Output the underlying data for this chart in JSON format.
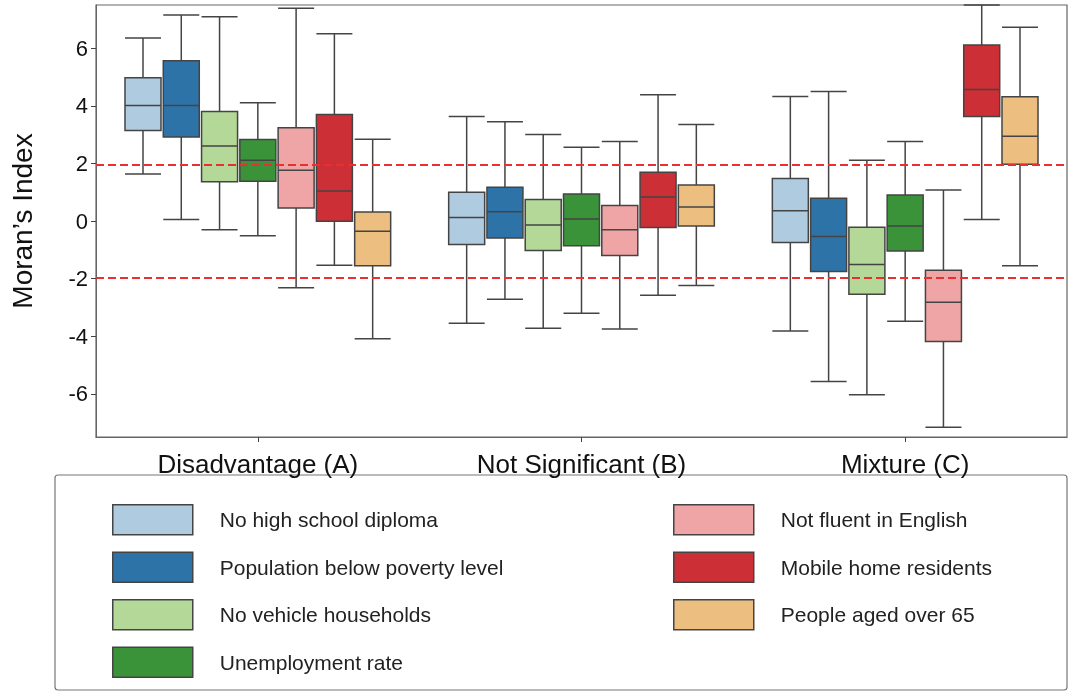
{
  "chart_data": {
    "type": "box",
    "ylabel": "Moran’s Index",
    "categories": [
      "Disadvantage (A)",
      "Not Significant (B)",
      "Mixture (C)"
    ],
    "ylim": [
      -7.5,
      7.5
    ],
    "yticks": [
      -6,
      -4,
      -2,
      0,
      2,
      4,
      6
    ],
    "grid": false,
    "legend": "bottom",
    "ref_lines": [
      {
        "axis": "y",
        "value": 1.96,
        "color": "#e8302f",
        "line_style": "dashed"
      },
      {
        "axis": "y",
        "value": -1.96,
        "color": "#e8302f",
        "line_style": "dashed"
      }
    ],
    "series": [
      {
        "name": "No high school diploma",
        "color": "#aecbe0",
        "boxes": [
          {
            "low": 1.63,
            "q1": 3.14,
            "median": 4.01,
            "q3": 4.97,
            "high": 6.35
          },
          {
            "low": -3.55,
            "q1": -0.82,
            "median": 0.12,
            "q3": 1.0,
            "high": 3.63
          },
          {
            "low": -3.82,
            "q1": -0.75,
            "median": 0.36,
            "q3": 1.48,
            "high": 4.32
          }
        ]
      },
      {
        "name": "Population below poverty level",
        "color": "#2e73a8",
        "boxes": [
          {
            "low": 0.05,
            "q1": 2.92,
            "median": 4.01,
            "q3": 5.56,
            "high": 7.15
          },
          {
            "low": -2.72,
            "q1": -0.59,
            "median": 0.32,
            "q3": 1.17,
            "high": 3.45
          },
          {
            "low": -5.57,
            "q1": -1.75,
            "median": -0.54,
            "q3": 0.79,
            "high": 4.5
          }
        ]
      },
      {
        "name": "No vehicle households",
        "color": "#b4d898",
        "boxes": [
          {
            "low": -0.3,
            "q1": 1.36,
            "median": 2.6,
            "q3": 3.8,
            "high": 7.09
          },
          {
            "low": -3.72,
            "q1": -1.02,
            "median": -0.14,
            "q3": 0.75,
            "high": 3.0
          },
          {
            "low": -6.03,
            "q1": -2.54,
            "median": -1.51,
            "q3": -0.22,
            "high": 2.11
          }
        ]
      },
      {
        "name": "Unemployment rate",
        "color": "#3a9239",
        "boxes": [
          {
            "low": -0.51,
            "q1": 1.38,
            "median": 2.11,
            "q3": 2.83,
            "high": 4.11
          },
          {
            "low": -3.2,
            "q1": -0.86,
            "median": 0.07,
            "q3": 0.94,
            "high": 2.56
          },
          {
            "low": -3.48,
            "q1": -1.04,
            "median": -0.17,
            "q3": 0.9,
            "high": 2.76
          }
        ]
      },
      {
        "name": "Not fluent in English",
        "color": "#efa5a5",
        "boxes": [
          {
            "low": -2.32,
            "q1": 0.45,
            "median": 1.76,
            "q3": 3.24,
            "high": 7.39
          },
          {
            "low": -3.75,
            "q1": -1.2,
            "median": -0.3,
            "q3": 0.54,
            "high": 2.76
          },
          {
            "low": -7.16,
            "q1": -4.18,
            "median": -2.82,
            "q3": -1.71,
            "high": 1.08
          }
        ]
      },
      {
        "name": "Mobile home residents",
        "color": "#cc2f35",
        "boxes": [
          {
            "low": -1.54,
            "q1": -0.01,
            "median": 1.04,
            "q3": 3.7,
            "high": 6.5
          },
          {
            "low": -2.58,
            "q1": -0.23,
            "median": 0.83,
            "q3": 1.69,
            "high": 4.38
          },
          {
            "low": 0.05,
            "q1": 3.63,
            "median": 4.57,
            "q3": 6.11,
            "high": 7.5
          }
        ]
      },
      {
        "name": "People aged over 65",
        "color": "#ecbf80",
        "boxes": [
          {
            "low": -4.09,
            "q1": -1.55,
            "median": -0.36,
            "q3": 0.31,
            "high": 2.84
          },
          {
            "low": -2.24,
            "q1": -0.17,
            "median": 0.49,
            "q3": 1.25,
            "high": 3.35
          },
          {
            "low": -1.55,
            "q1": 1.97,
            "median": 2.94,
            "q3": 4.31,
            "high": 6.73
          }
        ]
      }
    ]
  }
}
